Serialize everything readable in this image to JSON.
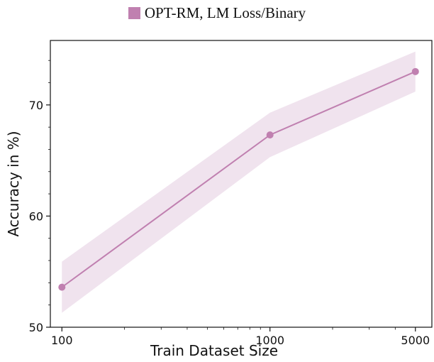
{
  "chart_data": {
    "type": "line",
    "x_scale": "log",
    "legend_position": "top-center",
    "xlabel": "Train Dataset Size",
    "ylabel": "Accuracy in %)",
    "xlim": [
      88,
      6000
    ],
    "ylim": [
      50,
      75.8
    ],
    "x_ticks": [
      100,
      1000,
      5000
    ],
    "x_tick_labels": [
      "100",
      "1000",
      "5000"
    ],
    "y_ticks": [
      50,
      60,
      70
    ],
    "y_tick_labels": [
      "50",
      "60",
      "70"
    ],
    "series": [
      {
        "name": "OPT-RM, LM Loss/Binary",
        "color": "#c080b0",
        "band_color": "#f0e3ee",
        "x": [
          100,
          1000,
          5000
        ],
        "y": [
          53.6,
          67.3,
          73.0
        ],
        "y_lower": [
          51.3,
          65.3,
          71.2
        ],
        "y_upper": [
          55.9,
          69.3,
          74.8
        ]
      }
    ]
  }
}
